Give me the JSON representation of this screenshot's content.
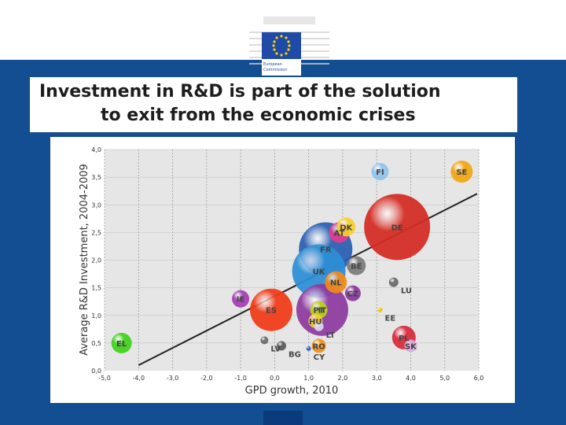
{
  "header": {
    "logo_text": "European Commission",
    "title_line1": "Investment in R&D is part of the solution",
    "title_line2": "to exit from the economic crises"
  },
  "colors": {
    "band_blue": "#134d92",
    "flag_blue": "#1f4aa8",
    "star_yellow": "#ffd400"
  },
  "chart_data": {
    "type": "scatter",
    "title": "",
    "xlabel": "GPD growth, 2010",
    "ylabel": "Average R&D Investment, 2004-2009",
    "xlim": [
      -5.0,
      6.0
    ],
    "ylim": [
      0.0,
      4.0
    ],
    "xticks": [
      "-5,0",
      "-4,0",
      "-3,0",
      "-2,0",
      "-1,0",
      "0,0",
      "1,0",
      "2,0",
      "3,0",
      "4,0",
      "5,0",
      "6,0"
    ],
    "yticks": [
      "0,0",
      "0,5",
      "1,0",
      "1,5",
      "2,0",
      "2,5",
      "3,0",
      "3,5",
      "4,0"
    ],
    "grid": true,
    "trendline": [
      [
        -4.0,
        0.1
      ],
      [
        5.95,
        3.2
      ]
    ],
    "points": [
      {
        "label": "DE",
        "x": 3.6,
        "y": 2.6,
        "size": 42,
        "color": "#d42b22"
      },
      {
        "label": "FR",
        "x": 1.5,
        "y": 2.2,
        "size": 34,
        "color": "#2a5fb3"
      },
      {
        "label": "UK",
        "x": 1.3,
        "y": 1.8,
        "size": 34,
        "color": "#2c8fd6"
      },
      {
        "label": "IT",
        "x": 1.4,
        "y": 1.1,
        "size": 33,
        "color": "#8e3aa0"
      },
      {
        "label": "ES",
        "x": -0.1,
        "y": 1.1,
        "size": 27,
        "color": "#f03a16"
      },
      {
        "label": "PL",
        "x": 3.8,
        "y": 0.6,
        "size": 15,
        "color": "#d92a3d"
      },
      {
        "label": "NL",
        "x": 1.8,
        "y": 1.6,
        "size": 14,
        "color": "#f08a1a"
      },
      {
        "label": "BE",
        "x": 2.4,
        "y": 1.9,
        "size": 12,
        "color": "#7a7a7a"
      },
      {
        "label": "AT",
        "x": 1.9,
        "y": 2.5,
        "size": 13,
        "color": "#e33b8e"
      },
      {
        "label": "SE",
        "x": 5.5,
        "y": 3.6,
        "size": 14,
        "color": "#f2a612"
      },
      {
        "label": "DK",
        "x": 2.1,
        "y": 2.6,
        "size": 12,
        "color": "#f5d02e"
      },
      {
        "label": "FI",
        "x": 3.1,
        "y": 3.6,
        "size": 11,
        "color": "#8fc3ec"
      },
      {
        "label": "CZ",
        "x": 2.3,
        "y": 1.4,
        "size": 10,
        "color": "#8a3a9c"
      },
      {
        "label": "PT",
        "x": 1.3,
        "y": 1.1,
        "size": 11,
        "color": "#b9d21e"
      },
      {
        "label": "EL",
        "x": -4.5,
        "y": 0.5,
        "size": 13,
        "color": "#3ed21c"
      },
      {
        "label": "IE",
        "x": -1.0,
        "y": 1.3,
        "size": 11,
        "color": "#a53db5"
      },
      {
        "label": "HU",
        "x": 1.2,
        "y": 0.9,
        "size": 9,
        "color": "#f5d02e"
      },
      {
        "label": "RO",
        "x": 1.3,
        "y": 0.45,
        "size": 9,
        "color": "#f0901a"
      },
      {
        "label": "SK",
        "x": 4.0,
        "y": 0.45,
        "size": 8,
        "color": "#d7a8df"
      },
      {
        "label": "LU",
        "x": 3.5,
        "y": 1.6,
        "size": 6,
        "color": "#6a6a6a"
      },
      {
        "label": "LT",
        "x": 1.3,
        "y": 0.8,
        "size": 6,
        "color": "#d7d7f2"
      },
      {
        "label": "BG",
        "x": 0.2,
        "y": 0.45,
        "size": 6,
        "color": "#5a5a5a"
      },
      {
        "label": "LV",
        "x": -0.3,
        "y": 0.55,
        "size": 5,
        "color": "#6a6a6a"
      },
      {
        "label": "CY",
        "x": 1.0,
        "y": 0.4,
        "size": 3,
        "color": "#2a5fb3"
      },
      {
        "label": "EE",
        "x": 3.1,
        "y": 1.1,
        "size": 3,
        "color": "#f2c200"
      }
    ]
  }
}
